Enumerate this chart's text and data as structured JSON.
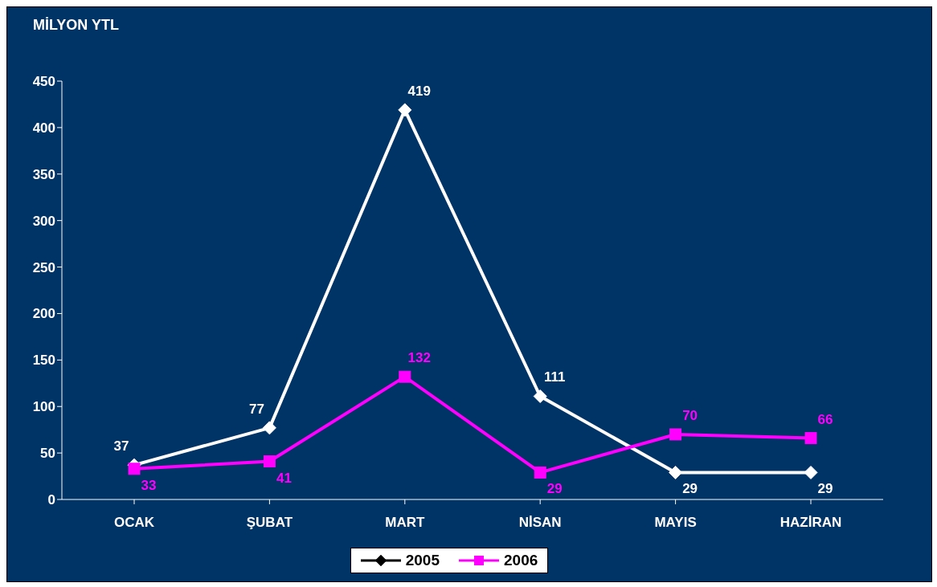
{
  "chart_data": {
    "type": "line",
    "title": "MİLYON YTL",
    "categories": [
      "OCAK",
      "ŞUBAT",
      "MART",
      "NİSAN",
      "MAYIS",
      "HAZİRAN"
    ],
    "series": [
      {
        "name": "2005",
        "color": "#ffffff",
        "marker": "diamond",
        "values": [
          37,
          77,
          419,
          111,
          29,
          29
        ]
      },
      {
        "name": "2006",
        "color": "#ff00ff",
        "marker": "square",
        "values": [
          33,
          41,
          132,
          29,
          70,
          66
        ]
      }
    ],
    "ylim": [
      0,
      450
    ],
    "yticks": [
      0,
      50,
      100,
      150,
      200,
      250,
      300,
      350,
      400,
      450
    ],
    "grid": false,
    "legend": "bottom",
    "data_labels": true,
    "line_style": "solid"
  }
}
